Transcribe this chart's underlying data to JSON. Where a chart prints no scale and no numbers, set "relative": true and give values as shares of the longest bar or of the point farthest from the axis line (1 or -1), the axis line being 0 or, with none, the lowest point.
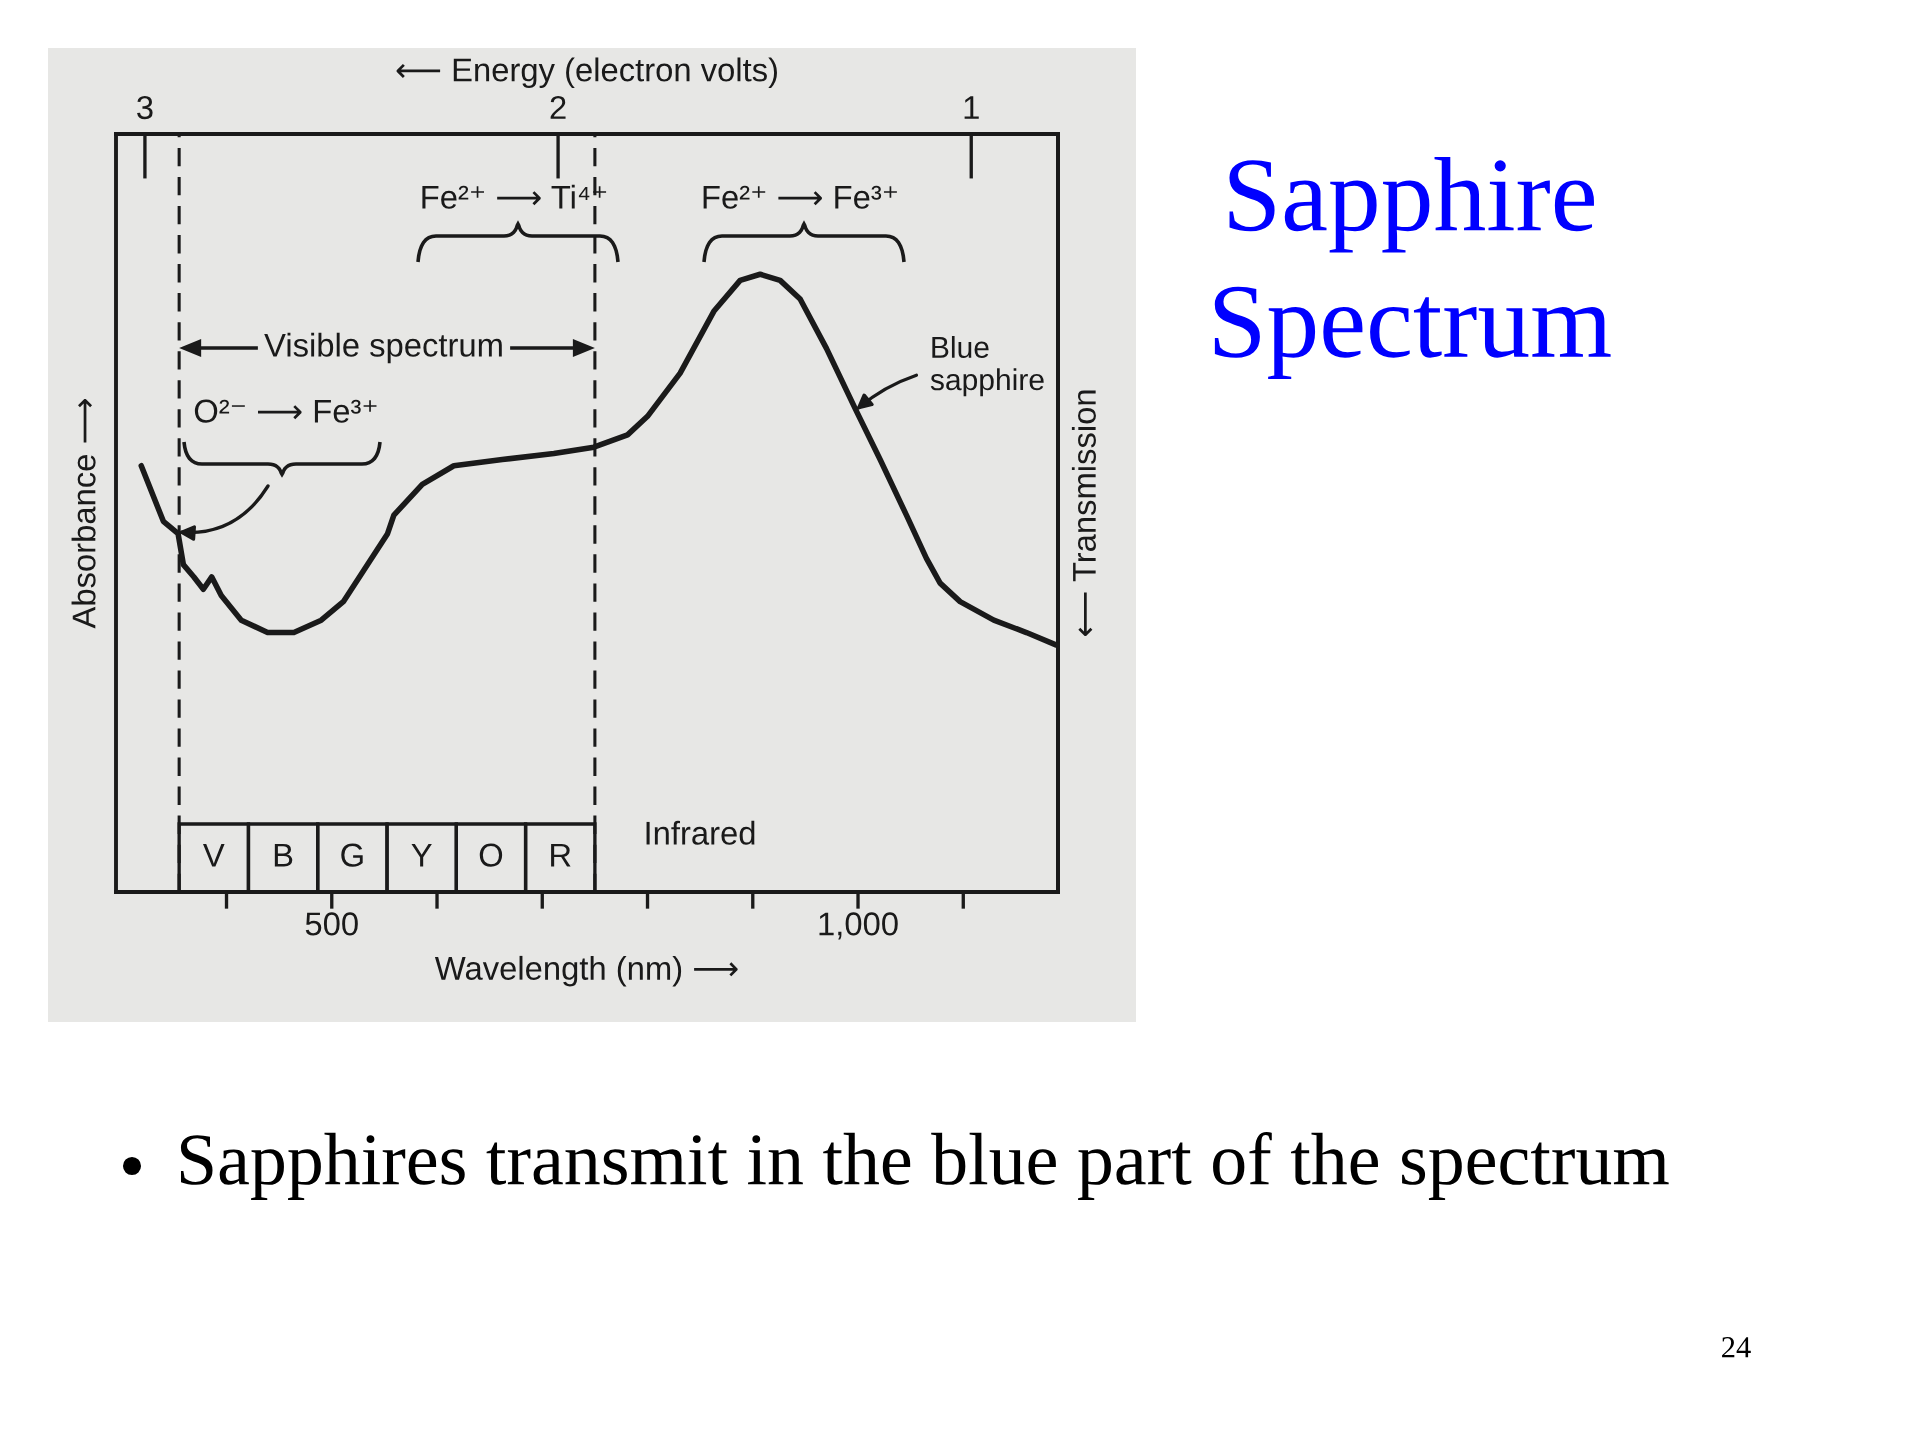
{
  "chart_data": {
    "type": "line",
    "title": "Sapphire\nSpectrum",
    "xlabel": "Wavelength (nm) ⟶",
    "x2label": "⟵ Energy (electron volts)",
    "ylabel": "Absorbance ⟶",
    "y2label": "⟵ Transmission",
    "relative": true,
    "color": "#1a1a1a",
    "x": [
      319,
      340,
      354,
      359,
      369,
      378,
      386,
      395,
      414,
      439,
      464,
      490,
      511,
      534,
      553,
      559,
      586,
      616,
      662,
      711,
      749,
      781,
      800,
      831,
      863,
      888,
      907,
      926,
      945,
      970,
      998,
      1021,
      1046,
      1065,
      1078,
      1097,
      1129,
      1160,
      1188
    ],
    "values": [
      0.69,
      0.6,
      0.58,
      0.53,
      0.51,
      0.49,
      0.51,
      0.48,
      0.44,
      0.42,
      0.42,
      0.44,
      0.47,
      0.53,
      0.58,
      0.61,
      0.66,
      0.69,
      0.7,
      0.71,
      0.72,
      0.74,
      0.77,
      0.84,
      0.94,
      0.99,
      1.0,
      0.99,
      0.96,
      0.88,
      0.78,
      0.7,
      0.61,
      0.54,
      0.5,
      0.47,
      0.44,
      0.42,
      0.4
    ],
    "xlim": [
      295,
      1190
    ],
    "xticks": [
      {
        "value": 400,
        "label": null
      },
      500,
      {
        "value": 600,
        "label": null
      },
      {
        "value": 700,
        "label": null
      },
      {
        "value": 800,
        "label": null
      },
      {
        "value": 900,
        "label": null
      },
      {
        "value": 1000,
        "label": "1,000"
      },
      {
        "value": 1100,
        "label": null
      }
    ],
    "x2lim": [
      3.07,
      0.79
    ],
    "x2ticks": [
      3,
      2,
      1
    ],
    "ref_lines": [
      {
        "axis": "x",
        "value": 355,
        "line_style": "dashed"
      },
      {
        "axis": "x",
        "value": 750,
        "line_style": "dashed"
      }
    ],
    "annotations": [
      "Fe²⁺ ⟶ Ti⁴⁺",
      "Fe²⁺ ⟶ Fe³⁺",
      "Visible spectrum",
      "O²⁻ ⟶ Fe³⁺",
      {
        "text": "Blue\nsapphire",
        "x": 998,
        "y": 0.78
      },
      "V",
      "B",
      "G",
      "Y",
      "O",
      "R",
      "Infrared",
      "Sapphires transmit in the blue part of the spectrum",
      "24"
    ]
  }
}
